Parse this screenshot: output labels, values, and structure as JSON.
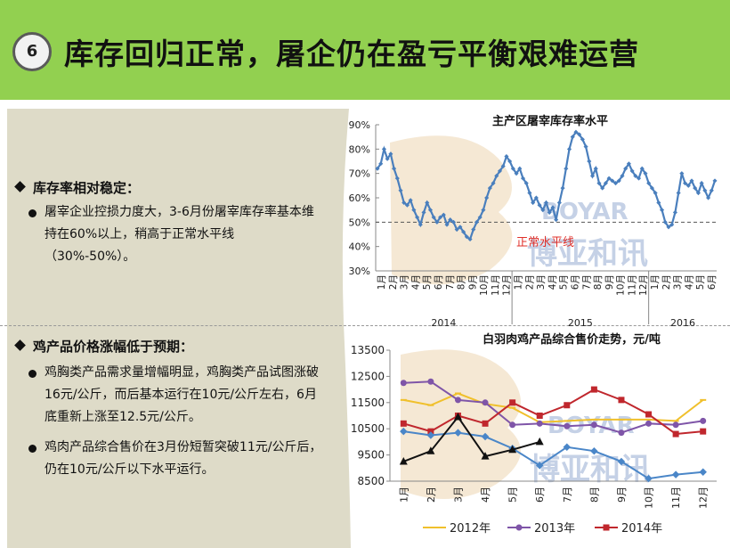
{
  "header": {
    "number": "6",
    "title": "库存回归正常，屠企仍在盈亏平衡艰难运营"
  },
  "section1": {
    "heading": "库存率相对稳定：",
    "points": [
      "屠宰企业控损力度大，3-6月份屠宰库存率基本维持在60%以上，稍高于正常水平线（30%-50%）。"
    ]
  },
  "section2": {
    "heading": "鸡产品价格涨幅低于预期：",
    "points": [
      "鸡胸类产品需求量增幅明显，鸡胸类产品试图涨破16元/公斤，而后基本运行在10元/公斤左右，6月底重新上涨至12.5元/公斤。",
      "鸡肉产品综合售价在3月份短暂突破11元/公斤后，仍在10元/公斤以下水平运行。"
    ]
  },
  "watermark": {
    "en": "BOYAR",
    "cn": "博亚和讯"
  },
  "chart_data": [
    {
      "type": "line",
      "title": "主产区屠宰库存率水平",
      "annotation": "正常水平线",
      "reference_line": 50,
      "ylim": [
        30,
        90
      ],
      "yticks": [
        "30%",
        "40%",
        "50%",
        "60%",
        "70%",
        "80%",
        "90%"
      ],
      "month_labels": [
        "1月",
        "2月",
        "3月",
        "4月",
        "5月",
        "6月",
        "7月",
        "8月",
        "9月",
        "10月",
        "11月",
        "12月",
        "1月",
        "2月",
        "3月",
        "4月",
        "5月",
        "6月",
        "7月",
        "8月",
        "9月",
        "10月",
        "11月",
        "12月",
        "1月",
        "2月",
        "3月",
        "4月",
        "5月",
        "6月"
      ],
      "years": [
        "2014",
        "2015",
        "2016"
      ],
      "series": [
        {
          "values": [
            72,
            74,
            80,
            76,
            78,
            72,
            68,
            63,
            58,
            57,
            59,
            55,
            52,
            49,
            54,
            58,
            55,
            52,
            50,
            52,
            53,
            49,
            51,
            50,
            47,
            48,
            46,
            44,
            43,
            47,
            50,
            52,
            55,
            60,
            64,
            66,
            69,
            71,
            73,
            77,
            75,
            72,
            70,
            72,
            68,
            66,
            62,
            58,
            60,
            57,
            55,
            58,
            54,
            56,
            51,
            58,
            64,
            72,
            80,
            85,
            87,
            86,
            84,
            81,
            75,
            69,
            72,
            66,
            64,
            66,
            68,
            67,
            66,
            67,
            69,
            72,
            74,
            71,
            69,
            68,
            72,
            70,
            66,
            64,
            62,
            58,
            55,
            50,
            48,
            49,
            54,
            62,
            70,
            66,
            65,
            67,
            64,
            62,
            66,
            63,
            60,
            63,
            67
          ]
        }
      ]
    },
    {
      "type": "line",
      "title": "白羽肉鸡产品综合售价走势，元/吨",
      "ylim": [
        8500,
        13500
      ],
      "yticks": [
        "8500",
        "9500",
        "10500",
        "11500",
        "12500",
        "13500"
      ],
      "categories": [
        "1月",
        "2月",
        "3月",
        "4月",
        "5月",
        "6月",
        "7月",
        "8月",
        "9月",
        "10月",
        "11月",
        "12月"
      ],
      "series": [
        {
          "name": "2012年",
          "color": "#f0c02c",
          "values": [
            11600,
            11400,
            11850,
            11450,
            11300,
            10750,
            10800,
            10850,
            10850,
            10850,
            10800,
            11600
          ]
        },
        {
          "name": "2013年",
          "color": "#7f55a8",
          "values": [
            12250,
            12300,
            11600,
            11500,
            10650,
            10700,
            10600,
            10650,
            10350,
            10700,
            10650,
            10800
          ]
        },
        {
          "name": "2014年",
          "color": "#c0272d",
          "values": [
            10700,
            10400,
            11000,
            10700,
            11500,
            11000,
            11400,
            12000,
            11600,
            11050,
            10300,
            10400
          ]
        },
        {
          "name": "",
          "color": "#4a86c8",
          "values": [
            10400,
            10250,
            10350,
            10200,
            9750,
            9100,
            9800,
            9650,
            9250,
            8600,
            8750,
            8850
          ]
        },
        {
          "name": "",
          "color": "#111111",
          "values": [
            9250,
            9650,
            10950,
            9450,
            9700,
            10000,
            null,
            null,
            null,
            null,
            null,
            null
          ]
        }
      ]
    }
  ]
}
